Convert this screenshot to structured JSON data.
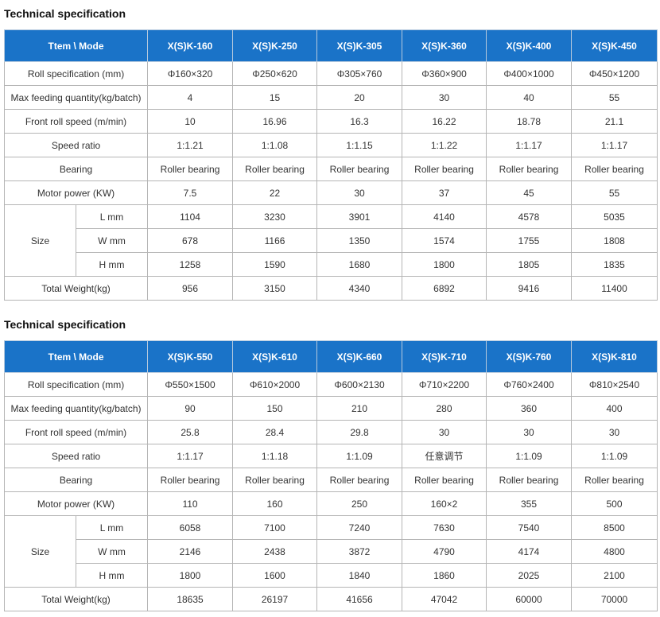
{
  "sections": [
    {
      "title": "Technical specification",
      "header": [
        "Ttem \\ Mode",
        "X(S)K-160",
        "X(S)K-250",
        "X(S)K-305",
        "X(S)K-360",
        "X(S)K-400",
        "X(S)K-450"
      ],
      "rows": {
        "roll_spec": {
          "label": "Roll specification (mm)",
          "values": [
            "Φ160×320",
            "Φ250×620",
            "Φ305×760",
            "Φ360×900",
            "Φ400×1000",
            "Φ450×1200"
          ]
        },
        "max_feeding": {
          "label": "Max feeding quantity(kg/batch)",
          "values": [
            "4",
            "15",
            "20",
            "30",
            "40",
            "55"
          ]
        },
        "front_roll_speed": {
          "label": "Front roll speed (m/min)",
          "values": [
            "10",
            "16.96",
            "16.3",
            "16.22",
            "18.78",
            "21.1"
          ]
        },
        "speed_ratio": {
          "label": "Speed ratio",
          "values": [
            "1:1.21",
            "1:1.08",
            "1:1.15",
            "1:1.22",
            "1:1.17",
            "1:1.17"
          ]
        },
        "bearing": {
          "label": "Bearing",
          "values": [
            "Roller bearing",
            "Roller bearing",
            "Roller bearing",
            "Roller bearing",
            "Roller bearing",
            "Roller bearing"
          ]
        },
        "motor_power": {
          "label": "Motor power (KW)",
          "values": [
            "7.5",
            "22",
            "30",
            "37",
            "45",
            "55"
          ]
        },
        "size_label": "Size",
        "size_l": {
          "label": "L mm",
          "values": [
            "1104",
            "3230",
            "3901",
            "4140",
            "4578",
            "5035"
          ]
        },
        "size_w": {
          "label": "W mm",
          "values": [
            "678",
            "1166",
            "1350",
            "1574",
            "1755",
            "1808"
          ]
        },
        "size_h": {
          "label": "H mm",
          "values": [
            "1258",
            "1590",
            "1680",
            "1800",
            "1805",
            "1835"
          ]
        },
        "total_weight": {
          "label": "Total Weight(kg)",
          "values": [
            "956",
            "3150",
            "4340",
            "6892",
            "9416",
            "11400"
          ]
        }
      }
    },
    {
      "title": "Technical specification",
      "header": [
        "Ttem \\ Mode",
        "X(S)K-550",
        "X(S)K-610",
        "X(S)K-660",
        "X(S)K-710",
        "X(S)K-760",
        "X(S)K-810"
      ],
      "rows": {
        "roll_spec": {
          "label": "Roll specification (mm)",
          "values": [
            "Φ550×1500",
            "Φ610×2000",
            "Φ600×2130",
            "Φ710×2200",
            "Φ760×2400",
            "Φ810×2540"
          ]
        },
        "max_feeding": {
          "label": "Max feeding quantity(kg/batch)",
          "values": [
            "90",
            "150",
            "210",
            "280",
            "360",
            "400"
          ]
        },
        "front_roll_speed": {
          "label": "Front roll speed (m/min)",
          "values": [
            "25.8",
            "28.4",
            "29.8",
            "30",
            "30",
            "30"
          ]
        },
        "speed_ratio": {
          "label": "Speed ratio",
          "values": [
            "1:1.17",
            "1:1.18",
            "1:1.09",
            "任意调节",
            "1:1.09",
            "1:1.09"
          ]
        },
        "bearing": {
          "label": "Bearing",
          "values": [
            "Roller bearing",
            "Roller bearing",
            "Roller bearing",
            "Roller bearing",
            "Roller bearing",
            "Roller bearing"
          ]
        },
        "motor_power": {
          "label": "Motor power (KW)",
          "values": [
            "110",
            "160",
            "250",
            "160×2",
            "355",
            "500"
          ]
        },
        "size_label": "Size",
        "size_l": {
          "label": "L mm",
          "values": [
            "6058",
            "7100",
            "7240",
            "7630",
            "7540",
            "8500"
          ]
        },
        "size_w": {
          "label": "W mm",
          "values": [
            "2146",
            "2438",
            "3872",
            "4790",
            "4174",
            "4800"
          ]
        },
        "size_h": {
          "label": "H mm",
          "values": [
            "1800",
            "1600",
            "1840",
            "1860",
            "2025",
            "2100"
          ]
        },
        "total_weight": {
          "label": "Total Weight(kg)",
          "values": [
            "18635",
            "26197",
            "41656",
            "47042",
            "60000",
            "70000"
          ]
        }
      }
    }
  ],
  "colors": {
    "header_bg": "#1a73c8",
    "header_text": "#ffffff",
    "border": "#b5b5b5",
    "body_text": "#333333"
  }
}
